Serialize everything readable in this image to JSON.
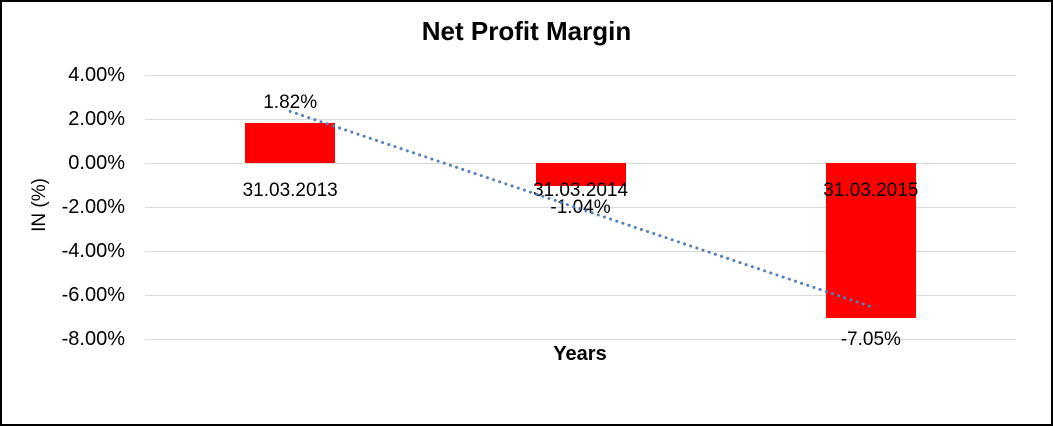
{
  "chart_data": {
    "type": "bar",
    "title": "Net Profit Margin",
    "xlabel": "Years",
    "ylabel": "IN (%)",
    "categories": [
      "31.03.2013",
      "31.03.2014",
      "31.03.2015"
    ],
    "values": [
      1.82,
      -1.04,
      -7.05
    ],
    "value_labels": [
      "1.82%",
      "-1.04%",
      "-7.05%"
    ],
    "yticks": [
      {
        "label": "4.00%",
        "value": 4
      },
      {
        "label": "2.00%",
        "value": 2
      },
      {
        "label": "0.00%",
        "value": 0
      },
      {
        "label": "-2.00%",
        "value": -2
      },
      {
        "label": "-4.00%",
        "value": -4
      },
      {
        "label": "-6.00%",
        "value": -6
      },
      {
        "label": "-8.00%",
        "value": -8
      }
    ],
    "ylim": [
      -8,
      4
    ],
    "grid": true,
    "legend": false,
    "bar_color": "#FF0000",
    "gridline_color": "#D9D9D9",
    "trendline": {
      "type": "linear",
      "style": "dotted",
      "color": "#4F81BD"
    },
    "text_color": "#000000"
  }
}
